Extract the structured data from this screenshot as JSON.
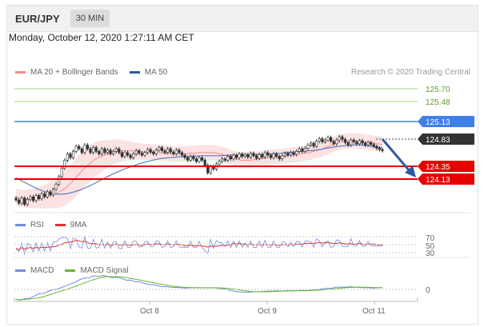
{
  "header": {
    "symbol": "EUR/JPY",
    "timeframe": "30 MIN"
  },
  "datetime": "Monday, October 12, 2020 1:27:11 AM CET",
  "price_legend": {
    "ma20": "MA 20 + Bollinger Bands",
    "ma50": "MA 50",
    "copyright": "Research © 2020 Trading Central"
  },
  "levels": {
    "r3": "125.70",
    "r2": "125.48",
    "r1": "125.13",
    "last": "124.83",
    "s1": "124.35",
    "s2": "124.13"
  },
  "rsi_legend": {
    "rsi": "RSI",
    "ma": "9MA"
  },
  "rsi_axis": [
    "70",
    "50",
    "30"
  ],
  "macd_legend": {
    "macd": "MACD",
    "signal": "MACD Signal"
  },
  "macd_axis": [
    "0"
  ],
  "x_labels": [
    "Oct 8",
    "Oct 9",
    "Oct 11"
  ],
  "colors": {
    "bull": "#3a3a3a",
    "bear": "#3a3a3a",
    "ma20": "#f28b8b",
    "ma50": "#5a7fc0",
    "resistance_minor": "#8cc63f",
    "resistance": "#3f7fe8",
    "support": "#e60000",
    "last": "#333333",
    "rsi": "#6b8fe0",
    "rsi_ma": "#d33",
    "macd": "#6b8fe0",
    "signal": "#6ab42d"
  },
  "chart_data": {
    "type": "candlestick",
    "price_range": [
      123.9,
      125.95
    ],
    "last_price": 124.83,
    "forecast_target": 124.13,
    "closes": [
      124.05,
      124.0,
      124.08,
      123.98,
      124.06,
      124.1,
      124.04,
      124.12,
      124.07,
      124.15,
      124.1,
      124.18,
      124.13,
      124.22,
      124.3,
      124.42,
      124.55,
      124.68,
      124.78,
      124.72,
      124.82,
      124.9,
      124.86,
      124.8,
      124.92,
      124.86,
      124.8,
      124.88,
      124.82,
      124.78,
      124.86,
      124.8,
      124.84,
      124.78,
      124.82,
      124.86,
      124.8,
      124.74,
      124.8,
      124.76,
      124.72,
      124.78,
      124.83,
      124.79,
      124.76,
      124.8,
      124.85,
      124.81,
      124.78,
      124.84,
      124.88,
      124.83,
      124.8,
      124.86,
      124.81,
      124.78,
      124.84,
      124.8,
      124.76,
      124.72,
      124.68,
      124.74,
      124.7,
      124.66,
      124.72,
      124.68,
      124.6,
      124.48,
      124.58,
      124.54,
      124.62,
      124.66,
      124.7,
      124.68,
      124.74,
      124.7,
      124.76,
      124.72,
      124.78,
      124.74,
      124.77,
      124.73,
      124.79,
      124.75,
      124.71,
      124.77,
      124.73,
      124.8,
      124.76,
      124.72,
      124.78,
      124.74,
      124.7,
      124.75,
      124.79,
      124.76,
      124.8,
      124.77,
      124.82,
      124.86,
      124.82,
      124.87,
      124.92,
      124.95,
      124.9,
      124.98,
      125.02,
      124.97,
      125.0,
      125.04,
      124.98,
      124.94,
      125.0,
      125.05,
      125.01,
      124.96,
      124.92,
      125.0,
      124.97,
      124.94,
      124.99,
      124.95,
      124.92,
      124.96,
      124.93,
      124.9,
      124.87,
      124.85,
      124.83
    ],
    "ma20": [
      124.1,
      124.08,
      124.07,
      124.07,
      124.08,
      124.09,
      124.1,
      124.12,
      124.14,
      124.16,
      124.2,
      124.25,
      124.32,
      124.4,
      124.48,
      124.56,
      124.62,
      124.68,
      124.72,
      124.75,
      124.78,
      124.8,
      124.82,
      124.83,
      124.83,
      124.83,
      124.82,
      124.82,
      124.81,
      124.81,
      124.8,
      124.8,
      124.79,
      124.79,
      124.78,
      124.78,
      124.78,
      124.78,
      124.79,
      124.79,
      124.8,
      124.8,
      124.8,
      124.8,
      124.79,
      124.77,
      124.75,
      124.72,
      124.7,
      124.68,
      124.68,
      124.68,
      124.69,
      124.7,
      124.71,
      124.72,
      124.73,
      124.74,
      124.74,
      124.75,
      124.76,
      124.77,
      124.78,
      124.79,
      124.8,
      124.82,
      124.84,
      124.86,
      124.89,
      124.92,
      124.95,
      124.97,
      124.98,
      124.99,
      124.99,
      124.98,
      124.97,
      124.96,
      124.95,
      124.94,
      124.93
    ],
    "ma50": [
      124.4,
      124.34,
      124.28,
      124.22,
      124.18,
      124.15,
      124.14,
      124.15,
      124.18,
      124.22,
      124.27,
      124.33,
      124.39,
      124.45,
      124.5,
      124.55,
      124.59,
      124.63,
      124.66,
      124.69,
      124.71,
      124.72,
      124.73,
      124.74,
      124.74,
      124.75,
      124.75,
      124.75,
      124.75,
      124.76,
      124.76,
      124.76,
      124.76,
      124.77,
      124.77,
      124.78,
      124.79,
      124.8,
      124.81,
      124.82,
      124.83,
      124.84,
      124.86,
      124.88,
      124.9,
      124.91,
      124.92,
      124.92,
      124.91,
      124.89,
      124.88
    ]
  }
}
